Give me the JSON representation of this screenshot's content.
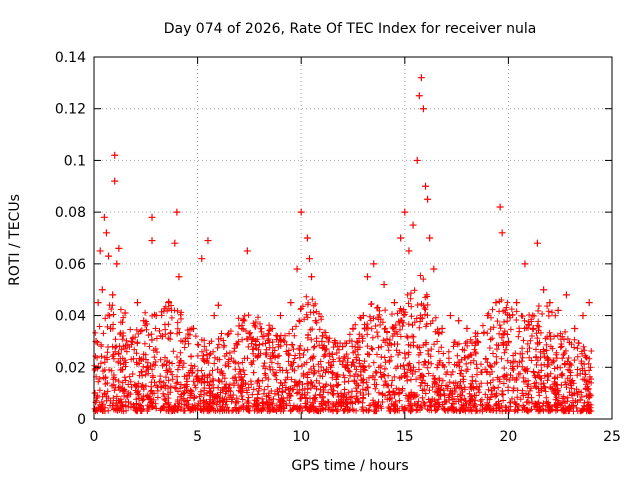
{
  "chart_data": {
    "type": "scatter",
    "title": "Day 074 of 2026, Rate Of TEC Index for receiver nula",
    "xlabel": "GPS time / hours",
    "ylabel": "ROTI / TECUs",
    "xlim": [
      0,
      25
    ],
    "ylim": [
      0,
      0.14
    ],
    "x_ticks": [
      0,
      5,
      10,
      15,
      20,
      25
    ],
    "y_ticks": [
      0,
      0.02,
      0.04,
      0.06,
      0.08,
      0.1,
      0.12,
      0.14
    ],
    "x_tick_labels": [
      "0",
      "5",
      "10",
      "15",
      "20",
      "25"
    ],
    "y_tick_labels": [
      "0",
      "0.02",
      "0.04",
      "0.06",
      "0.08",
      "0.1",
      "0.12",
      "0.14"
    ],
    "grid": true,
    "marker": "plus",
    "color": "#ff0000",
    "series": [
      {
        "x": [
          0.1,
          0.2,
          0.3,
          0.4,
          0.5,
          0.6,
          0.7,
          0.8,
          0.9,
          1.0,
          1.0,
          1.1,
          1.2,
          1.5,
          1.8,
          2.1,
          2.4,
          2.8,
          2.8,
          3.0,
          3.3,
          3.6,
          3.9,
          4.0,
          4.1,
          4.4,
          4.8,
          5.2,
          5.5,
          5.8,
          6.0,
          6.5,
          7.0,
          7.4,
          7.8,
          8.2,
          8.6,
          9.0,
          9.5,
          9.8,
          10.0,
          10.3,
          10.4,
          10.5,
          10.7,
          11.0,
          11.5,
          12.0,
          12.5,
          13.0,
          13.2,
          13.5,
          14.0,
          14.5,
          14.8,
          15.0,
          15.2,
          15.4,
          15.6,
          15.7,
          15.8,
          15.9,
          16.0,
          16.1,
          16.2,
          16.4,
          16.8,
          17.2,
          17.6,
          18.0,
          18.5,
          19.0,
          19.4,
          19.6,
          19.7,
          20.0,
          20.4,
          20.8,
          21.2,
          21.4,
          21.7,
          22.0,
          22.4,
          22.8,
          23.2,
          23.6,
          23.9
        ],
        "y": [
          0.03,
          0.045,
          0.065,
          0.05,
          0.078,
          0.072,
          0.063,
          0.035,
          0.048,
          0.092,
          0.102,
          0.06,
          0.066,
          0.041,
          0.03,
          0.045,
          0.038,
          0.078,
          0.069,
          0.04,
          0.032,
          0.045,
          0.068,
          0.08,
          0.055,
          0.03,
          0.035,
          0.062,
          0.069,
          0.04,
          0.044,
          0.033,
          0.036,
          0.065,
          0.03,
          0.032,
          0.035,
          0.04,
          0.045,
          0.058,
          0.08,
          0.07,
          0.062,
          0.055,
          0.038,
          0.03,
          0.025,
          0.028,
          0.035,
          0.04,
          0.055,
          0.06,
          0.052,
          0.045,
          0.07,
          0.08,
          0.065,
          0.075,
          0.1,
          0.125,
          0.132,
          0.12,
          0.09,
          0.085,
          0.07,
          0.058,
          0.035,
          0.04,
          0.038,
          0.035,
          0.03,
          0.04,
          0.045,
          0.082,
          0.072,
          0.03,
          0.045,
          0.06,
          0.035,
          0.068,
          0.05,
          0.045,
          0.042,
          0.048,
          0.035,
          0.04,
          0.045
        ]
      }
    ]
  }
}
